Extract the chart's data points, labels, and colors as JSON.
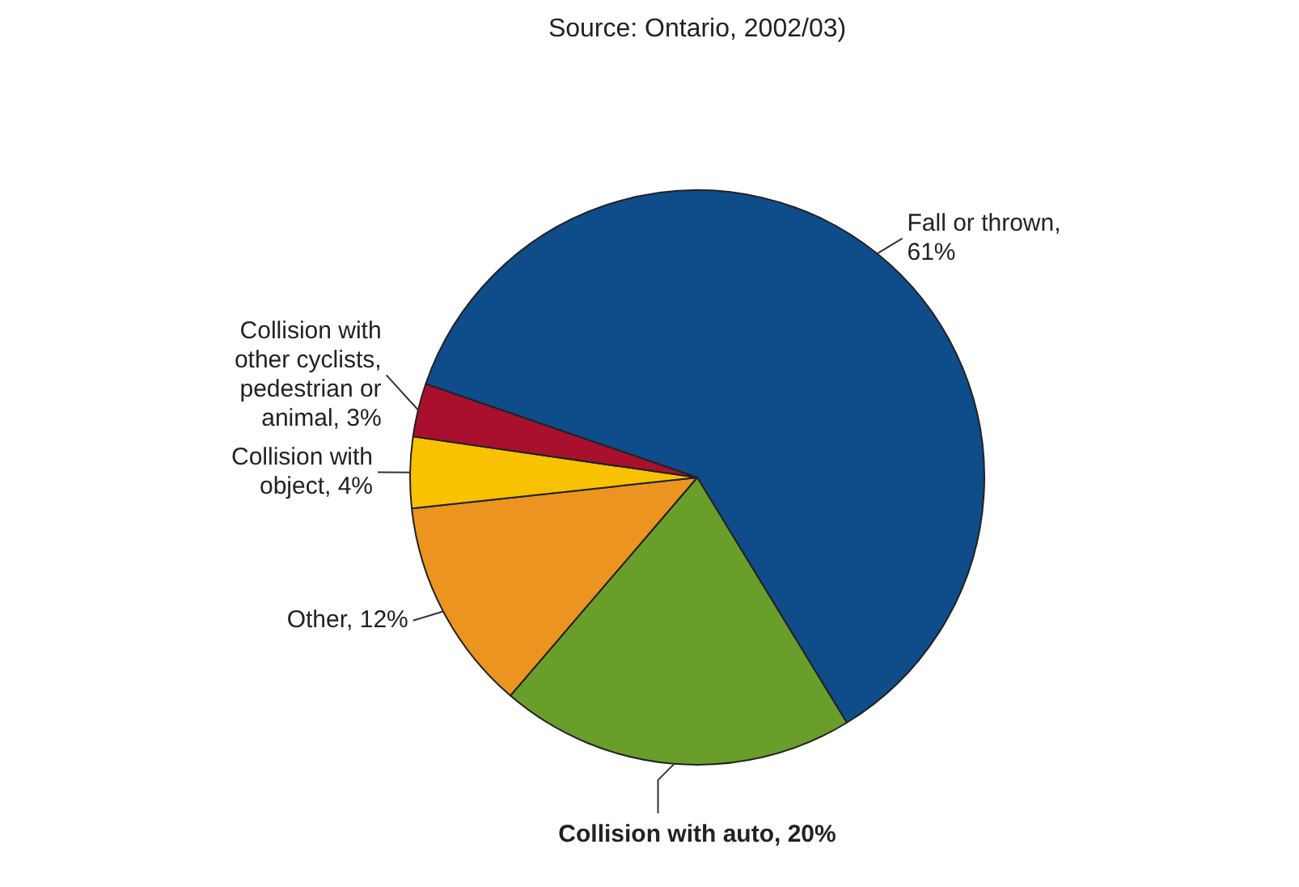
{
  "chart_data": {
    "type": "pie",
    "title": "Source: Ontario, 2002/03)",
    "categories": [
      "Fall or thrown, 61%",
      "Collision with auto, 20%",
      "Other, 12%",
      "Collision with object, 4%",
      "Collision with other cyclists, pedestrian or animal, 3%"
    ],
    "values": [
      61,
      20,
      12,
      4,
      3
    ],
    "colors": [
      "#0f4c8a",
      "#6a9e2a",
      "#ec9420",
      "#f8c200",
      "#a8102e"
    ],
    "legend": false
  }
}
